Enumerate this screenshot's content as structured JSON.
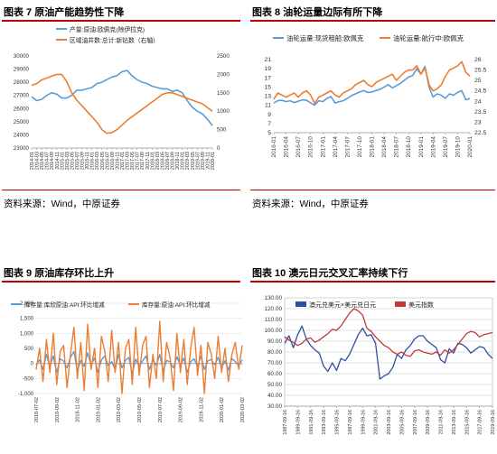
{
  "colors": {
    "accent": "#c00000",
    "blue": "#5b9bd5",
    "orange": "#ed7d31",
    "navy": "#2e4fa3",
    "red": "#c0393b"
  },
  "panels": [
    {
      "title": "图表 7 原油产能趋势性下降",
      "source": "资料来源：Wind，中原证券"
    },
    {
      "title": "图表 8 油轮运量边际有所下降",
      "source": "资料来源：Wind，中原证券"
    },
    {
      "title": "图表 9 原油库存环比上升",
      "source": ""
    },
    {
      "title": "图表 10 澳元日元交叉汇率持续下行",
      "source": ""
    }
  ],
  "chart_data": [
    {
      "type": "line",
      "x": [
        "2014-01",
        "2014-03",
        "2014-05",
        "2014-07",
        "2014-09",
        "2014-11",
        "2015-01",
        "2015-03",
        "2015-05",
        "2015-07",
        "2015-09",
        "2015-11",
        "2016-01",
        "2016-03",
        "2016-05",
        "2016-07",
        "2016-09",
        "2016-11",
        "2017-01",
        "2017-03",
        "2017-05",
        "2017-07",
        "2017-09",
        "2017-11",
        "2018-01",
        "2018-03",
        "2018-05",
        "2018-07",
        "2018-09",
        "2018-11",
        "2019-01",
        "2019-03",
        "2019-05",
        "2019-07",
        "2019-09",
        "2019-11",
        "2020-01"
      ],
      "series": [
        {
          "name": "产量:原油:欧佩克(除伊拉克)",
          "axis": "left",
          "values": [
            26900,
            26600,
            26700,
            27000,
            27200,
            27100,
            26800,
            26800,
            27000,
            27400,
            27400,
            27500,
            27600,
            27900,
            28000,
            28200,
            28400,
            28500,
            28800,
            28900,
            28500,
            28200,
            28000,
            27900,
            27700,
            27600,
            27500,
            27500,
            27300,
            27400,
            27200,
            26600,
            26100,
            25800,
            25600,
            25200,
            24700
          ]
        },
        {
          "name": "区域油井数:总计:新钻数（右轴）",
          "axis": "right",
          "values": [
            1700,
            1750,
            1850,
            1900,
            1950,
            2000,
            2000,
            1800,
            1500,
            1300,
            1150,
            1000,
            850,
            700,
            500,
            400,
            420,
            500,
            620,
            750,
            850,
            950,
            1050,
            1150,
            1250,
            1350,
            1450,
            1500,
            1500,
            1450,
            1400,
            1350,
            1300,
            1250,
            1200,
            1100,
            1000
          ]
        }
      ],
      "xlabels": [
        "2014-01",
        "2014-03",
        "2014-05",
        "2014-07",
        "2014-09",
        "2014-11",
        "2015-01",
        "2015-03",
        "2015-05",
        "2015-07",
        "2015-09",
        "2015-11",
        "2016-01",
        "2016-03",
        "2016-05",
        "2016-07",
        "2016-09",
        "2016-11",
        "2017-01",
        "2017-03",
        "2017-05",
        "2017-07",
        "2017-09",
        "2017-11",
        "2018-01",
        "2018-03",
        "2018-05",
        "2018-07",
        "2018-09",
        "2018-11",
        "2019-01",
        "2019-03",
        "2019-05",
        "2019-07",
        "2019-09",
        "2019-11",
        "2020-01"
      ],
      "yticks_left": [
        "30000",
        "29000",
        "28000",
        "27000",
        "26000",
        "25000",
        "24000",
        "23000"
      ],
      "yticks_right": [
        "2500",
        "2000",
        "1500",
        "1000",
        "500",
        "0"
      ],
      "ylim_left": [
        23000,
        30000
      ],
      "ylim_right": [
        0,
        2500
      ],
      "legend": "top-left",
      "grid": false
    },
    {
      "type": "line",
      "x": [
        "2016-01",
        "2016-02",
        "2016-03",
        "2016-04",
        "2016-05",
        "2016-06",
        "2016-07",
        "2016-08",
        "2016-09",
        "2016-10",
        "2016-11",
        "2016-12",
        "2017-01",
        "2017-02",
        "2017-03",
        "2017-04",
        "2017-05",
        "2017-06",
        "2017-07",
        "2017-08",
        "2017-09",
        "2017-10",
        "2017-11",
        "2017-12",
        "2018-01",
        "2018-02",
        "2018-03",
        "2018-04",
        "2018-05",
        "2018-06",
        "2018-07",
        "2018-08",
        "2018-09",
        "2018-10",
        "2018-11",
        "2018-12",
        "2019-01",
        "2019-02",
        "2019-03",
        "2019-04",
        "2019-05",
        "2019-06",
        "2019-07",
        "2019-08",
        "2019-09",
        "2019-10",
        "2019-11",
        "2019-12",
        "2020-01"
      ],
      "series": [
        {
          "name": "油轮运量:现货租船:欧佩克",
          "axis": "left",
          "values": [
            11.5,
            12.0,
            12.1,
            11.8,
            12.0,
            11.6,
            11.9,
            12.2,
            12.1,
            11.5,
            11.0,
            12.0,
            11.8,
            12.5,
            12.9,
            11.5,
            11.8,
            12.0,
            12.5,
            13.1,
            13.5,
            13.9,
            14.2,
            13.8,
            13.9,
            14.2,
            14.5,
            15.0,
            15.5,
            14.8,
            15.3,
            15.8,
            16.5,
            17.2,
            17.5,
            19.0,
            17.8,
            19.5,
            15.0,
            12.8,
            13.5,
            13.2,
            12.5,
            13.5,
            13.2,
            13.8,
            14.2,
            12.2,
            12.5
          ]
        },
        {
          "name": "油轮运量:航行中:欧佩克",
          "axis": "right",
          "values": [
            24.1,
            24.4,
            24.3,
            24.2,
            24.3,
            24.4,
            24.2,
            24.4,
            24.5,
            24.3,
            23.9,
            24.2,
            24.3,
            24.4,
            24.5,
            24.3,
            24.2,
            24.4,
            24.5,
            24.6,
            24.8,
            24.9,
            25.0,
            24.8,
            24.7,
            24.9,
            25.0,
            25.1,
            25.2,
            25.3,
            25.0,
            25.2,
            25.4,
            25.5,
            25.5,
            25.7,
            25.3,
            25.6,
            24.8,
            24.5,
            24.6,
            24.8,
            25.2,
            25.5,
            25.6,
            25.7,
            25.9,
            25.4,
            25.2
          ]
        }
      ],
      "xlabels": [
        "2016-01",
        "2016-04",
        "2016-07",
        "2016-10",
        "2017-01",
        "2017-04",
        "2017-07",
        "2017-10",
        "2018-01",
        "2018-04",
        "2018-07",
        "2018-10",
        "2019-01",
        "2019-04",
        "2019-07",
        "2019-10",
        "2020-01"
      ],
      "yticks_left": [
        "21",
        "19",
        "17",
        "15",
        "13",
        "11",
        "9",
        "7",
        "5"
      ],
      "yticks_right": [
        "26",
        "25.5",
        "25",
        "24.5",
        "24",
        "23.5",
        "23",
        "22.5"
      ],
      "ylim_left": [
        5,
        21
      ],
      "ylim_right": [
        22.5,
        26
      ],
      "legend": "top-left",
      "grid": false
    },
    {
      "type": "line",
      "series": [
        {
          "name": "库存量:库欣原油:API:环比增减",
          "axis": "left",
          "values": [
            -50,
            120,
            -200,
            300,
            -100,
            250,
            -300,
            150,
            80,
            -150,
            200,
            400,
            -250,
            100,
            -100,
            350,
            -50,
            180,
            -300,
            120,
            250,
            -80,
            60,
            -200,
            300,
            -150,
            100,
            200,
            -350,
            150,
            -100,
            80,
            250,
            -200,
            120,
            -60,
            300,
            -250,
            100,
            50,
            -150,
            220,
            -80,
            180,
            -300,
            60,
            150,
            -100,
            240,
            -200,
            80,
            130,
            -50,
            200,
            -150,
            90,
            -220,
            160,
            60,
            -80,
            120
          ]
        },
        {
          "name": "库存量:原油:API:环比增减",
          "axis": "left",
          "values": [
            -200,
            500,
            -600,
            800,
            -300,
            1000,
            -700,
            400,
            600,
            -800,
            300,
            1200,
            -500,
            700,
            -900,
            1300,
            -200,
            500,
            -800,
            900,
            400,
            -600,
            1100,
            -300,
            700,
            -1000,
            500,
            800,
            -700,
            1200,
            -400,
            600,
            900,
            -800,
            300,
            -500,
            1400,
            -600,
            700,
            200,
            -900,
            1000,
            -300,
            800,
            -700,
            500,
            1200,
            -400,
            600,
            -1000,
            700,
            300,
            -500,
            900,
            -300,
            500,
            -600,
            300,
            700,
            -200,
            600
          ]
        }
      ],
      "xlabels": [
        "2018-07-02",
        "2018-09-02",
        "2018-11-02",
        "2019-01-02",
        "2019-03-02",
        "2019-05-02",
        "2019-07-02",
        "2019-09-02",
        "2019-11-02",
        "2020-01-02",
        "2020-03-02"
      ],
      "yticks_left": [
        "2,000",
        "1,500",
        "1,000",
        "500",
        "0",
        "-500",
        "-1,000"
      ],
      "ylim_left": [
        -1000,
        2000
      ],
      "legend": "top",
      "grid": true
    },
    {
      "type": "line",
      "series": [
        {
          "name": "澳元兑美元×美元兑日元",
          "axis": "left",
          "values": [
            88,
            95,
            84,
            96,
            104,
            92,
            86,
            82,
            79,
            67,
            62,
            70,
            63,
            74,
            72,
            78,
            87,
            96,
            102,
            95,
            96,
            88,
            55,
            58,
            60,
            66,
            78,
            74,
            82,
            86,
            92,
            95,
            95,
            90,
            87,
            84,
            73,
            70,
            83,
            79,
            88,
            87,
            84,
            79,
            82,
            85,
            84,
            78,
            74
          ]
        },
        {
          "name": "美元指数",
          "axis": "left",
          "values": [
            94,
            91,
            89,
            86,
            88,
            92,
            93,
            89,
            91,
            94,
            97,
            101,
            100,
            104,
            110,
            116,
            120,
            118,
            114,
            102,
            99,
            94,
            90,
            86,
            84,
            80,
            78,
            80,
            77,
            76,
            81,
            82,
            80,
            79,
            78,
            80,
            77,
            82,
            79,
            82,
            87,
            92,
            97,
            99,
            98,
            94,
            96,
            97,
            98
          ]
        }
      ],
      "xlabels": [
        "1987-09-16",
        "1989-09-16",
        "1991-09-16",
        "1993-09-16",
        "1995-09-16",
        "1997-09-16",
        "1999-09-16",
        "2001-09-16",
        "2003-09-16",
        "2005-09-16",
        "2007-09-16",
        "2009-09-16",
        "2011-09-16",
        "2013-09-16",
        "2015-09-16",
        "2017-09-16",
        "2019-09-16"
      ],
      "yticks_left": [
        "130.00",
        "120.00",
        "110.00",
        "100.00",
        "90.00",
        "80.00",
        "70.00",
        "60.00",
        "50.00",
        "40.00",
        "30.00"
      ],
      "ylim_left": [
        30,
        130
      ],
      "legend": "top",
      "grid": true
    }
  ]
}
